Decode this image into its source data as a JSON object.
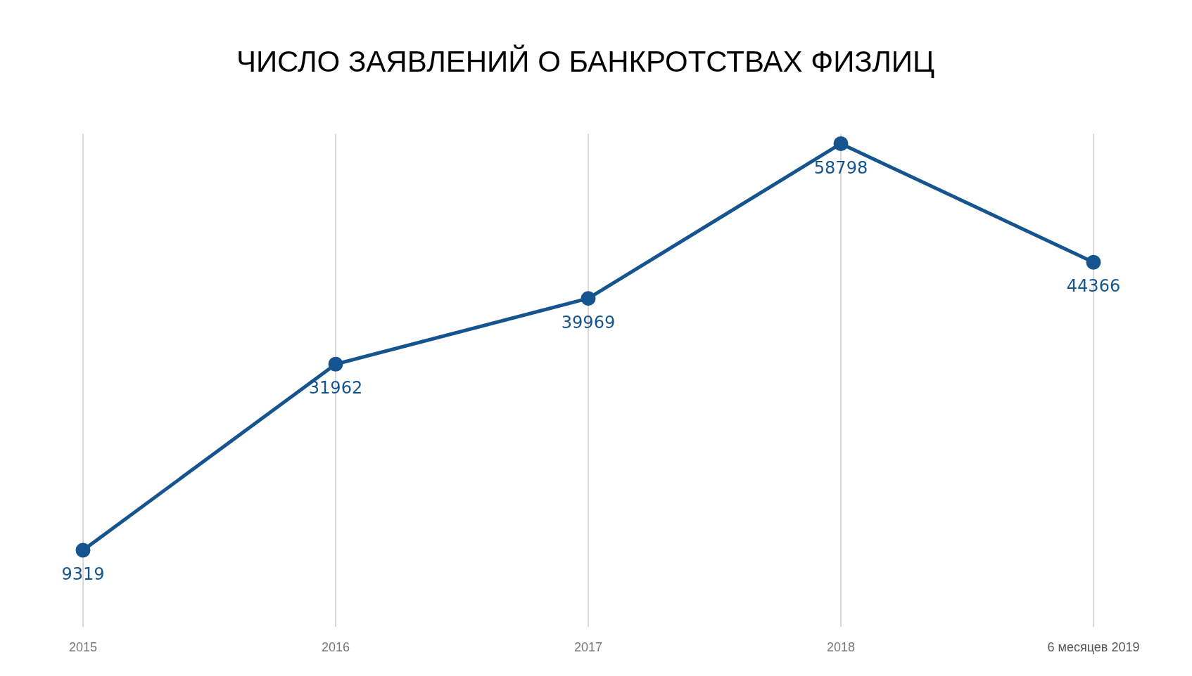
{
  "chart_data": {
    "type": "line",
    "title": "ЧИСЛО ЗАЯВЛЕНИЙ О БАНКРОТСТВАХ ФИЗЛИЦ",
    "categories": [
      "2015",
      "2016",
      "2017",
      "2018",
      "6 месяцев 2019"
    ],
    "series": [
      {
        "color": "#15548f",
        "values": [
          9319,
          31962,
          39969,
          58798,
          44366
        ]
      }
    ],
    "data_labels": true,
    "grid": "x",
    "marker": "circle",
    "line_style": "solid",
    "legend": false,
    "tick_labels": "x"
  }
}
